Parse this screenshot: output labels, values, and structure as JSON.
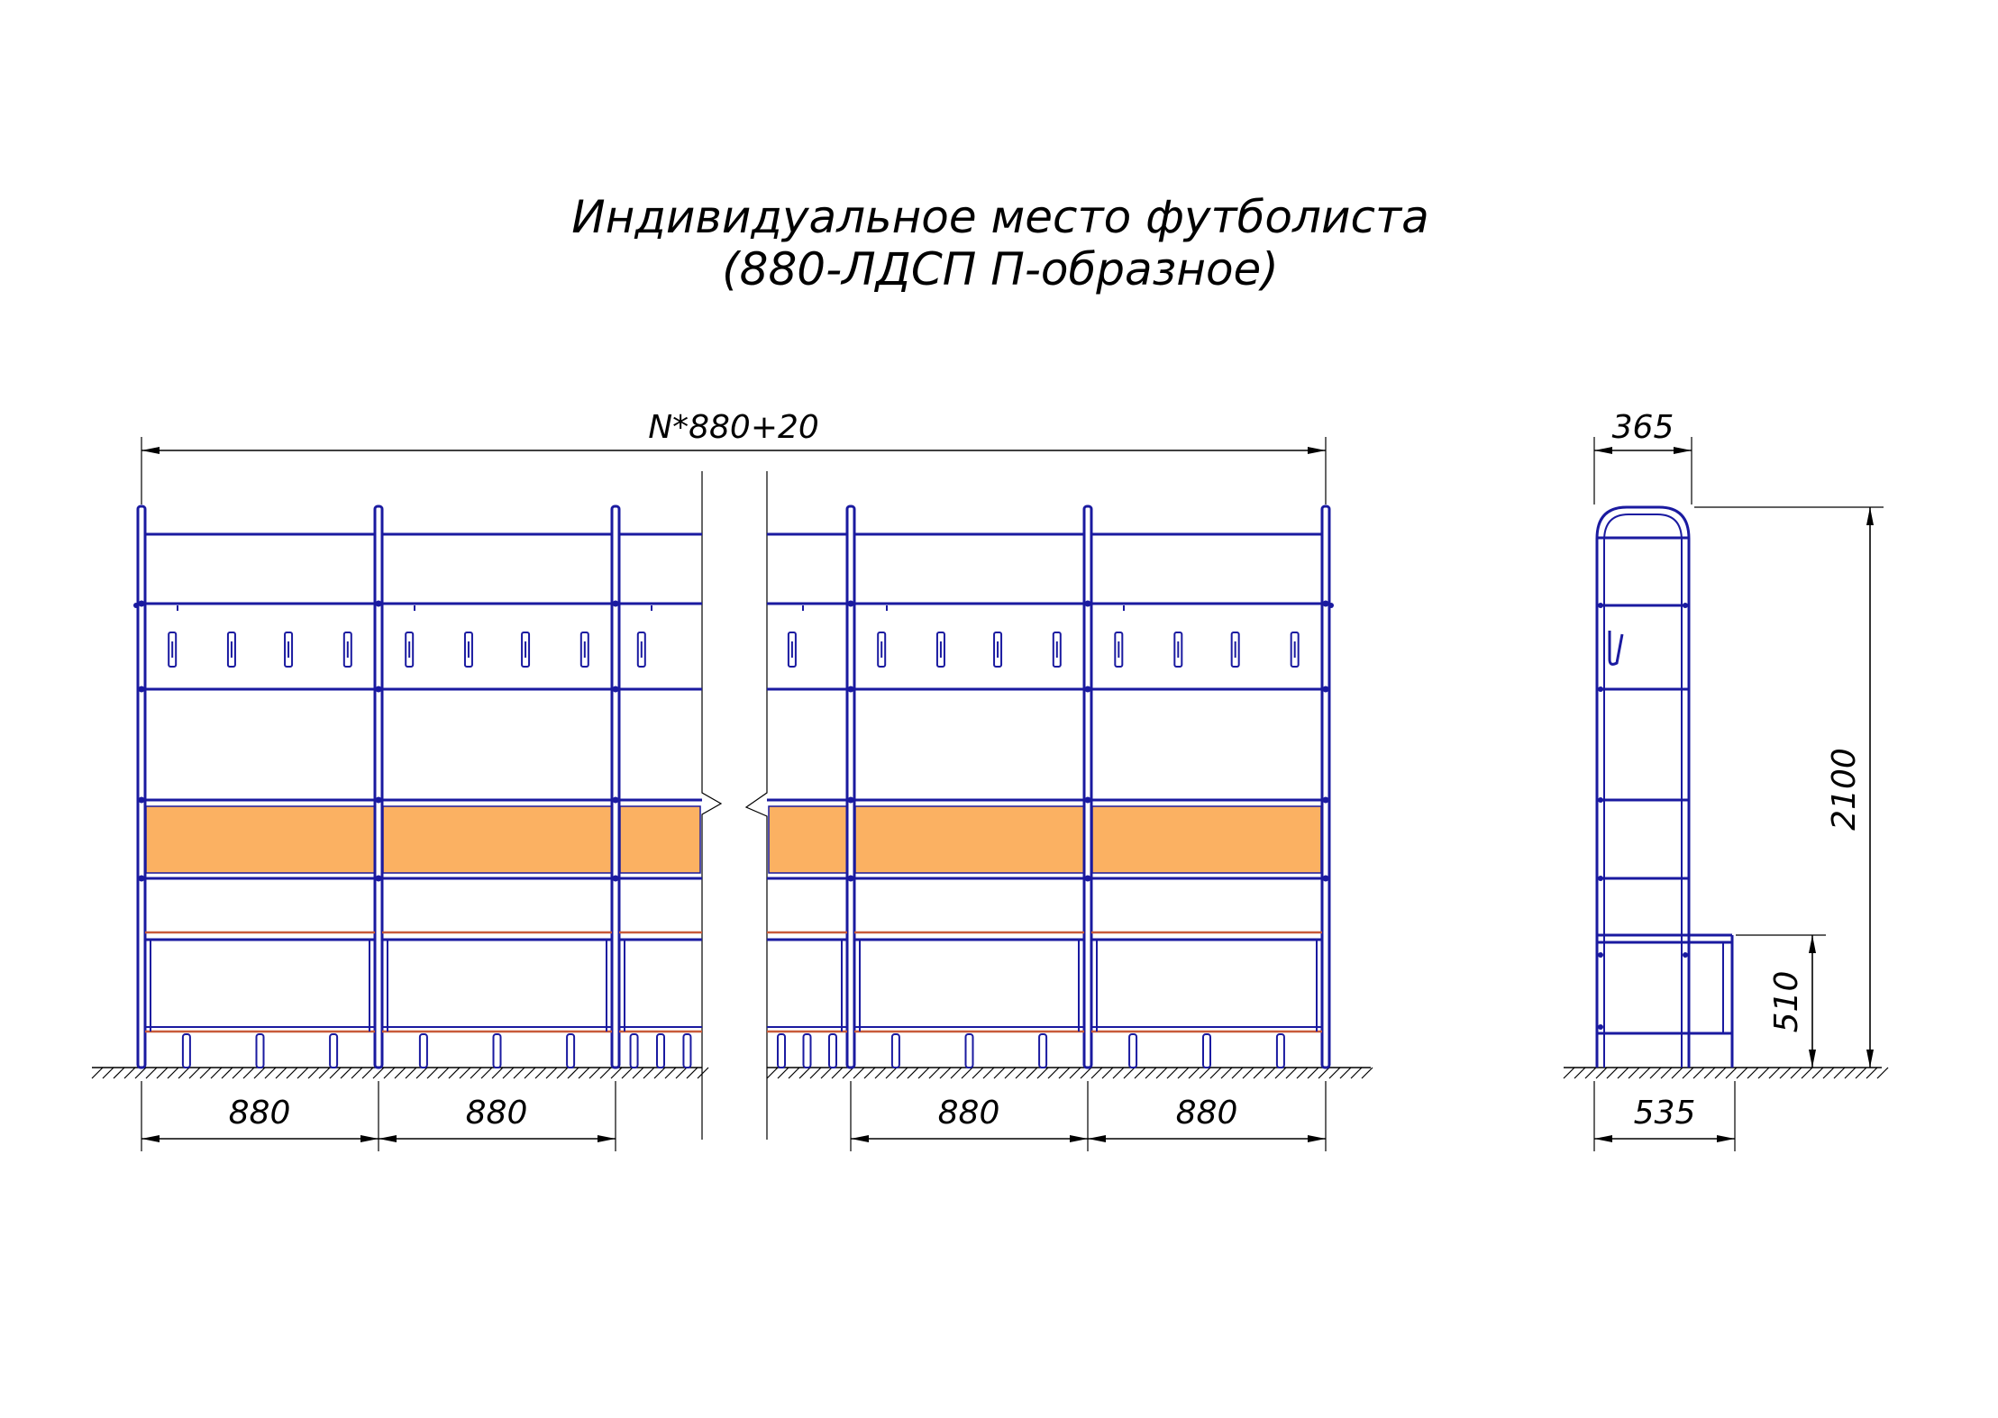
{
  "title": {
    "line1": "Индивидуальное место футболиста",
    "line2": "(880-ЛДСП П-образное)"
  },
  "front_view": {
    "overall_dimension": "N*880+20",
    "module_dimensions": [
      "880",
      "880",
      "880",
      "880"
    ]
  },
  "side_view": {
    "depth_top": "365",
    "depth_bottom": "535",
    "height_total": "2100",
    "height_seat": "510"
  },
  "colors": {
    "frame": "#1a1aa0",
    "panel": "#fbb162",
    "seat": "#c85a3a",
    "dimension": "#000000"
  }
}
